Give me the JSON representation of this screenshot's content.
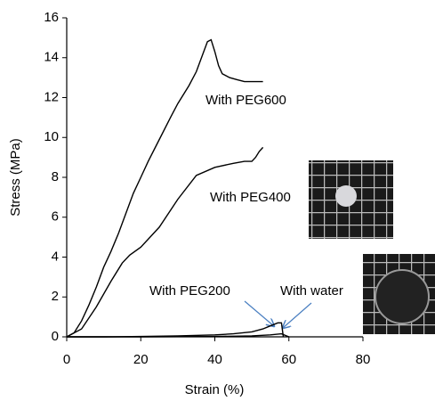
{
  "chart_data": {
    "type": "line",
    "xlabel": "Strain (%)",
    "ylabel": "Stress (MPa)",
    "xlim": [
      0,
      80
    ],
    "xticks": [
      0,
      20,
      40,
      60,
      80
    ],
    "ylim": [
      0,
      16
    ],
    "yticks": [
      0,
      2,
      4,
      6,
      8,
      10,
      12,
      14,
      16
    ],
    "grid": false,
    "series": [
      {
        "color": "#000000",
        "x": [
          0,
          2,
          4,
          6,
          8,
          10,
          11,
          12,
          14,
          16,
          18,
          20,
          22,
          25,
          28,
          30,
          33,
          35,
          37,
          38,
          39,
          40,
          41,
          42,
          44,
          46,
          48,
          50,
          52,
          53
        ],
        "values": [
          0,
          0.2,
          0.8,
          1.6,
          2.5,
          3.5,
          3.9,
          4.3,
          5.2,
          6.2,
          7.2,
          8.0,
          8.8,
          9.9,
          11.0,
          11.7,
          12.6,
          13.3,
          14.3,
          14.8,
          14.9,
          14.3,
          13.6,
          13.2,
          13.0,
          12.9,
          12.8,
          12.8,
          12.8,
          12.8
        ]
      },
      {
        "color": "#000000",
        "x": [
          0,
          4,
          8,
          12,
          15,
          17,
          20,
          25,
          30,
          35,
          40,
          45,
          48,
          50,
          51,
          52,
          53
        ],
        "values": [
          0,
          0.4,
          1.5,
          2.8,
          3.7,
          4.1,
          4.5,
          5.5,
          6.9,
          8.1,
          8.5,
          8.7,
          8.8,
          8.8,
          9.0,
          9.3,
          9.5
        ]
      },
      {
        "color": "#000000",
        "x": [
          0,
          10,
          20,
          30,
          40,
          45,
          50,
          53,
          55,
          57,
          58,
          58.5
        ],
        "values": [
          0,
          0,
          0.02,
          0.05,
          0.1,
          0.15,
          0.25,
          0.4,
          0.55,
          0.7,
          0.7,
          0
        ]
      },
      {
        "color": "#000000",
        "x": [
          0,
          20,
          40,
          50,
          55,
          58,
          60
        ],
        "values": [
          0,
          0,
          0.02,
          0.05,
          0.1,
          0.15,
          0
        ]
      }
    ],
    "annotations": [
      {
        "text": "With PEG600"
      },
      {
        "text": "With PEG400"
      },
      {
        "text": "With PEG200"
      },
      {
        "text": "With water"
      }
    ]
  }
}
